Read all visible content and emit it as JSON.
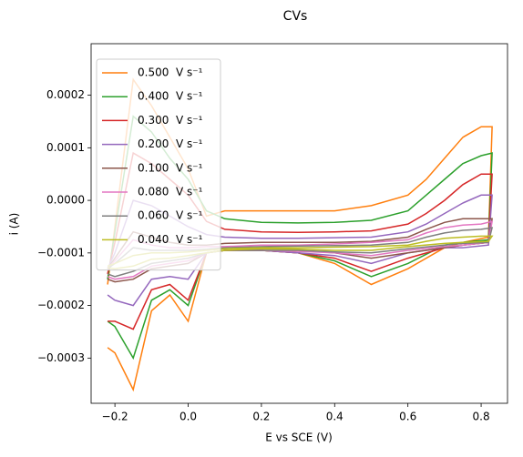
{
  "chart_data": {
    "type": "line",
    "title": "CVs",
    "xlabel": "E vs SCE (V)",
    "ylabel": "i (A)",
    "xlim": [
      -0.265,
      0.872
    ],
    "ylim": [
      -0.000386,
      0.000298
    ],
    "xticks": [
      {
        "value": -0.2,
        "label": "−0.2"
      },
      {
        "value": 0.0,
        "label": "0.0"
      },
      0.2,
      0.4,
      0.6,
      0.8
    ],
    "yticks": [
      {
        "value": -0.0003,
        "label": "−0.0003"
      },
      {
        "value": -0.0002,
        "label": "−0.0002"
      },
      {
        "value": -0.0001,
        "label": "−0.0001"
      },
      {
        "value": 0.0,
        "label": "0.0000"
      },
      {
        "value": 0.0001,
        "label": "0.0001"
      },
      {
        "value": 0.0002,
        "label": "0.0002"
      }
    ],
    "legend": "upper left",
    "x": [
      -0.22,
      -0.2,
      -0.15,
      -0.1,
      -0.05,
      0.0,
      0.05,
      0.1,
      0.2,
      0.3,
      0.4,
      0.5,
      0.6,
      0.65,
      0.7,
      0.75,
      0.8,
      0.83,
      0.82,
      0.75,
      0.7,
      0.6,
      0.5,
      0.4,
      0.3,
      0.2,
      0.1,
      0.05,
      0.0,
      -0.05,
      -0.1,
      -0.15,
      -0.2,
      -0.22
    ],
    "series": [
      {
        "name": "0.500  V s⁻¹",
        "color": "#ff7f0e",
        "values": [
          -0.00016,
          -5e-05,
          0.00023,
          0.00018,
          0.00012,
          6e-05,
          -3e-05,
          -2e-05,
          -2e-05,
          -2e-05,
          -2e-05,
          -1e-05,
          1e-05,
          4e-05,
          8e-05,
          0.00012,
          0.00014,
          0.00014,
          -7e-05,
          -8e-05,
          -9e-05,
          -0.00013,
          -0.00016,
          -0.00012,
          -0.0001,
          -9.5e-05,
          -9.5e-05,
          -0.0001,
          -0.00023,
          -0.00018,
          -0.00021,
          -0.00036,
          -0.00029,
          -0.00028
        ]
      },
      {
        "name": "0.400  V s⁻¹",
        "color": "#2ca02c",
        "values": [
          -0.00015,
          -6e-05,
          0.00016,
          0.00013,
          8e-05,
          4e-05,
          -2e-05,
          -3.5e-05,
          -4.2e-05,
          -4.3e-05,
          -4.2e-05,
          -3.8e-05,
          -2e-05,
          1e-05,
          4e-05,
          7e-05,
          8.5e-05,
          9e-05,
          -7.5e-05,
          -8e-05,
          -8.5e-05,
          -0.00012,
          -0.000145,
          -0.000115,
          -0.0001,
          -9.5e-05,
          -9.5e-05,
          -0.0001,
          -0.0002,
          -0.00017,
          -0.00019,
          -0.0003,
          -0.00024,
          -0.00023
        ]
      },
      {
        "name": "0.300  V s⁻¹",
        "color": "#d62728",
        "values": [
          -0.00014,
          -8e-05,
          9e-05,
          7e-05,
          4e-05,
          1e-05,
          -4e-05,
          -5.5e-05,
          -6e-05,
          -6.1e-05,
          -6e-05,
          -5.8e-05,
          -4.5e-05,
          -2.5e-05,
          0.0,
          3e-05,
          5e-05,
          5e-05,
          -8e-05,
          -8.5e-05,
          -9e-05,
          -0.00011,
          -0.000135,
          -0.00011,
          -0.0001,
          -9.5e-05,
          -9.5e-05,
          -0.0001,
          -0.00019,
          -0.00016,
          -0.00017,
          -0.000245,
          -0.00023,
          -0.00023
        ]
      },
      {
        "name": "0.200  V s⁻¹",
        "color": "#9467bd",
        "values": [
          -0.00013,
          -0.0001,
          0.0,
          -1e-05,
          -3e-05,
          -5e-05,
          -6.5e-05,
          -7e-05,
          -7.2e-05,
          -7.2e-05,
          -7.1e-05,
          -7e-05,
          -6e-05,
          -4.5e-05,
          -2.5e-05,
          -5e-06,
          1e-05,
          1e-05,
          -8.5e-05,
          -9e-05,
          -9e-05,
          -0.0001,
          -0.00012,
          -0.000105,
          -0.0001,
          -9.5e-05,
          -9.5e-05,
          -0.0001,
          -0.00015,
          -0.000145,
          -0.00015,
          -0.0002,
          -0.00019,
          -0.00018
        ]
      },
      {
        "name": "0.100  V s⁻¹",
        "color": "#8c564b",
        "values": [
          -0.00013,
          -0.00011,
          -6e-05,
          -7e-05,
          -8e-05,
          -8.5e-05,
          -8.5e-05,
          -8.2e-05,
          -8e-05,
          -8e-05,
          -8e-05,
          -7.8e-05,
          -7e-05,
          -5.5e-05,
          -4.2e-05,
          -3.5e-05,
          -3.5e-05,
          -3.5e-05,
          -8e-05,
          -8.5e-05,
          -9e-05,
          -0.0001,
          -0.00011,
          -0.0001,
          -9.5e-05,
          -9.5e-05,
          -9.5e-05,
          -0.0001,
          -0.00012,
          -0.000125,
          -0.00013,
          -0.00015,
          -0.000155,
          -0.00015
        ]
      },
      {
        "name": "0.080  V s⁻¹",
        "color": "#e377c2",
        "values": [
          -0.00013,
          -0.000115,
          -7.5e-05,
          -8.5e-05,
          -9e-05,
          -9e-05,
          -8.8e-05,
          -8.8e-05,
          -8.5e-05,
          -8.5e-05,
          -8.3e-05,
          -8e-05,
          -7.5e-05,
          -6.2e-05,
          -5.2e-05,
          -4.7e-05,
          -4.5e-05,
          -4e-05,
          -8e-05,
          -8.5e-05,
          -8.8e-05,
          -9.5e-05,
          -0.000105,
          -0.0001,
          -9.7e-05,
          -9.5e-05,
          -9.5e-05,
          -0.0001,
          -0.000115,
          -0.00012,
          -0.000125,
          -0.000145,
          -0.00015,
          -0.000145
        ]
      },
      {
        "name": "0.060  V s⁻¹",
        "color": "#7f7f7f",
        "values": [
          -0.00013,
          -0.00012,
          -9e-05,
          -9.5e-05,
          -9.5e-05,
          -9.5e-05,
          -9.3e-05,
          -9e-05,
          -8.8e-05,
          -8.7e-05,
          -8.6e-05,
          -8.5e-05,
          -8e-05,
          -7e-05,
          -6.2e-05,
          -5.7e-05,
          -5.5e-05,
          -5.2e-05,
          -8e-05,
          -8.2e-05,
          -8.5e-05,
          -9.2e-05,
          -0.0001,
          -9.8e-05,
          -9.5e-05,
          -9.5e-05,
          -9.5e-05,
          -0.0001,
          -0.00011,
          -0.000115,
          -0.00012,
          -0.000135,
          -0.000145,
          -0.00014
        ]
      },
      {
        "name": "0.040  V s⁻¹",
        "color": "#bcbd22",
        "values": [
          -0.000125,
          -0.00012,
          -0.000105,
          -0.0001,
          -0.0001,
          -9.8e-05,
          -9.5e-05,
          -9.2e-05,
          -9e-05,
          -9e-05,
          -8.9e-05,
          -8.8e-05,
          -8.5e-05,
          -7.8e-05,
          -7.2e-05,
          -7e-05,
          -6.8e-05,
          -6.8e-05,
          -7.8e-05,
          -8e-05,
          -8.2e-05,
          -8.8e-05,
          -9.5e-05,
          -9.5e-05,
          -9.3e-05,
          -9.2e-05,
          -9.5e-05,
          -0.0001,
          -0.000105,
          -0.00011,
          -0.000112,
          -0.000125,
          -0.00013,
          -0.000128
        ]
      }
    ]
  }
}
